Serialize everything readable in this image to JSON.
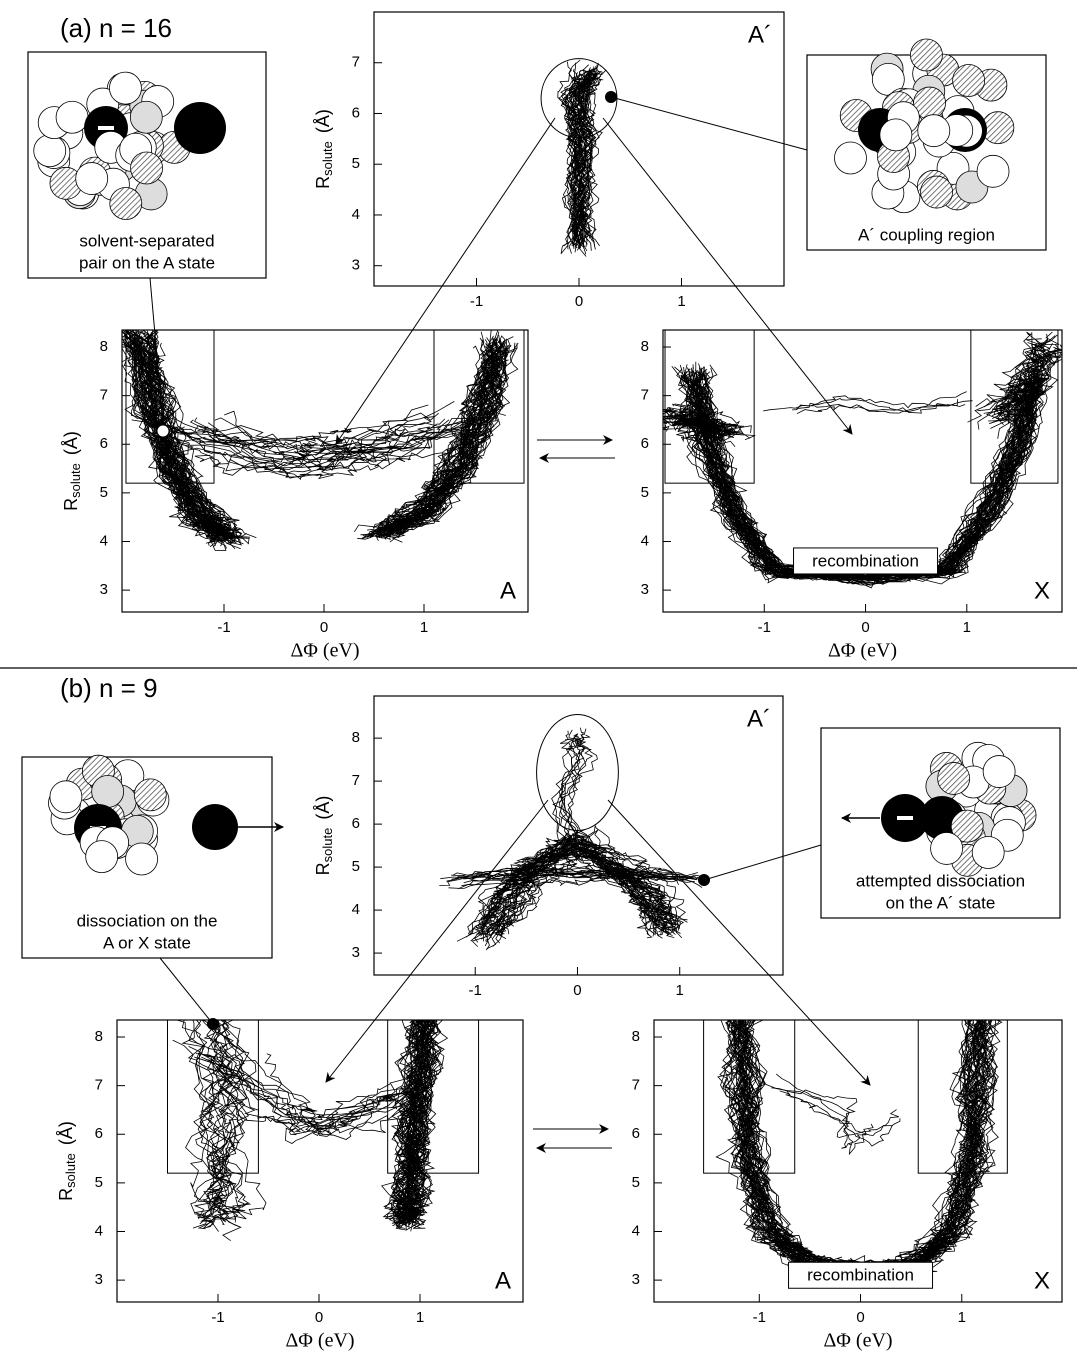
{
  "axis_labels": {
    "y": {
      "symbol": "R",
      "subscript": "solute",
      "unit": "(Å)"
    },
    "x": "ΔΦ (eV)"
  },
  "panels": [
    {
      "label": "(a) n = 16",
      "plots": [
        {
          "state": "A´",
          "xlim": [
            -2,
            2
          ],
          "ylim": [
            2.6,
            8
          ],
          "xticks": [
            -1,
            0,
            1
          ],
          "yticks": [
            3,
            4,
            5,
            6,
            7
          ]
        },
        {
          "state": "A",
          "xlim": [
            -2.02,
            2.04
          ],
          "ylim": [
            2.55,
            8.35
          ],
          "xticks": [
            -1,
            0,
            1
          ],
          "yticks": [
            3,
            4,
            5,
            6,
            7,
            8
          ]
        },
        {
          "state": "X",
          "xlim": [
            -2,
            1.94
          ],
          "ylim": [
            2.55,
            8.35
          ],
          "xticks": [
            -1,
            0,
            1
          ],
          "yticks": [
            3,
            4,
            5,
            6,
            7,
            8
          ],
          "annotation": "recombination"
        }
      ],
      "insets": [
        {
          "lines": [
            "solvent-separated",
            "pair on the A state"
          ]
        },
        {
          "lines": [
            "A´ coupling region"
          ]
        }
      ]
    },
    {
      "label": "(b) n = 9",
      "plots": [
        {
          "state": "A´",
          "xlim": [
            -1.99,
            2.01
          ],
          "ylim": [
            2.49,
            8.98
          ],
          "xticks": [
            -1,
            0,
            1
          ],
          "yticks": [
            3,
            4,
            5,
            6,
            7,
            8
          ]
        },
        {
          "state": "A",
          "xlim": [
            -2,
            2.02
          ],
          "ylim": [
            2.55,
            8.35
          ],
          "xticks": [
            -1,
            0,
            1
          ],
          "yticks": [
            3,
            4,
            5,
            6,
            7,
            8
          ]
        },
        {
          "state": "X",
          "xlim": [
            -2.04,
            1.99
          ],
          "ylim": [
            2.55,
            8.35
          ],
          "xticks": [
            -1,
            0,
            1
          ],
          "yticks": [
            3,
            4,
            5,
            6,
            7,
            8
          ],
          "annotation": "recombination"
        }
      ],
      "insets": [
        {
          "lines": [
            "dissociation on the",
            "A or X state"
          ]
        },
        {
          "lines": [
            "attempted dissociation",
            "on the A´ state"
          ]
        }
      ]
    }
  ]
}
